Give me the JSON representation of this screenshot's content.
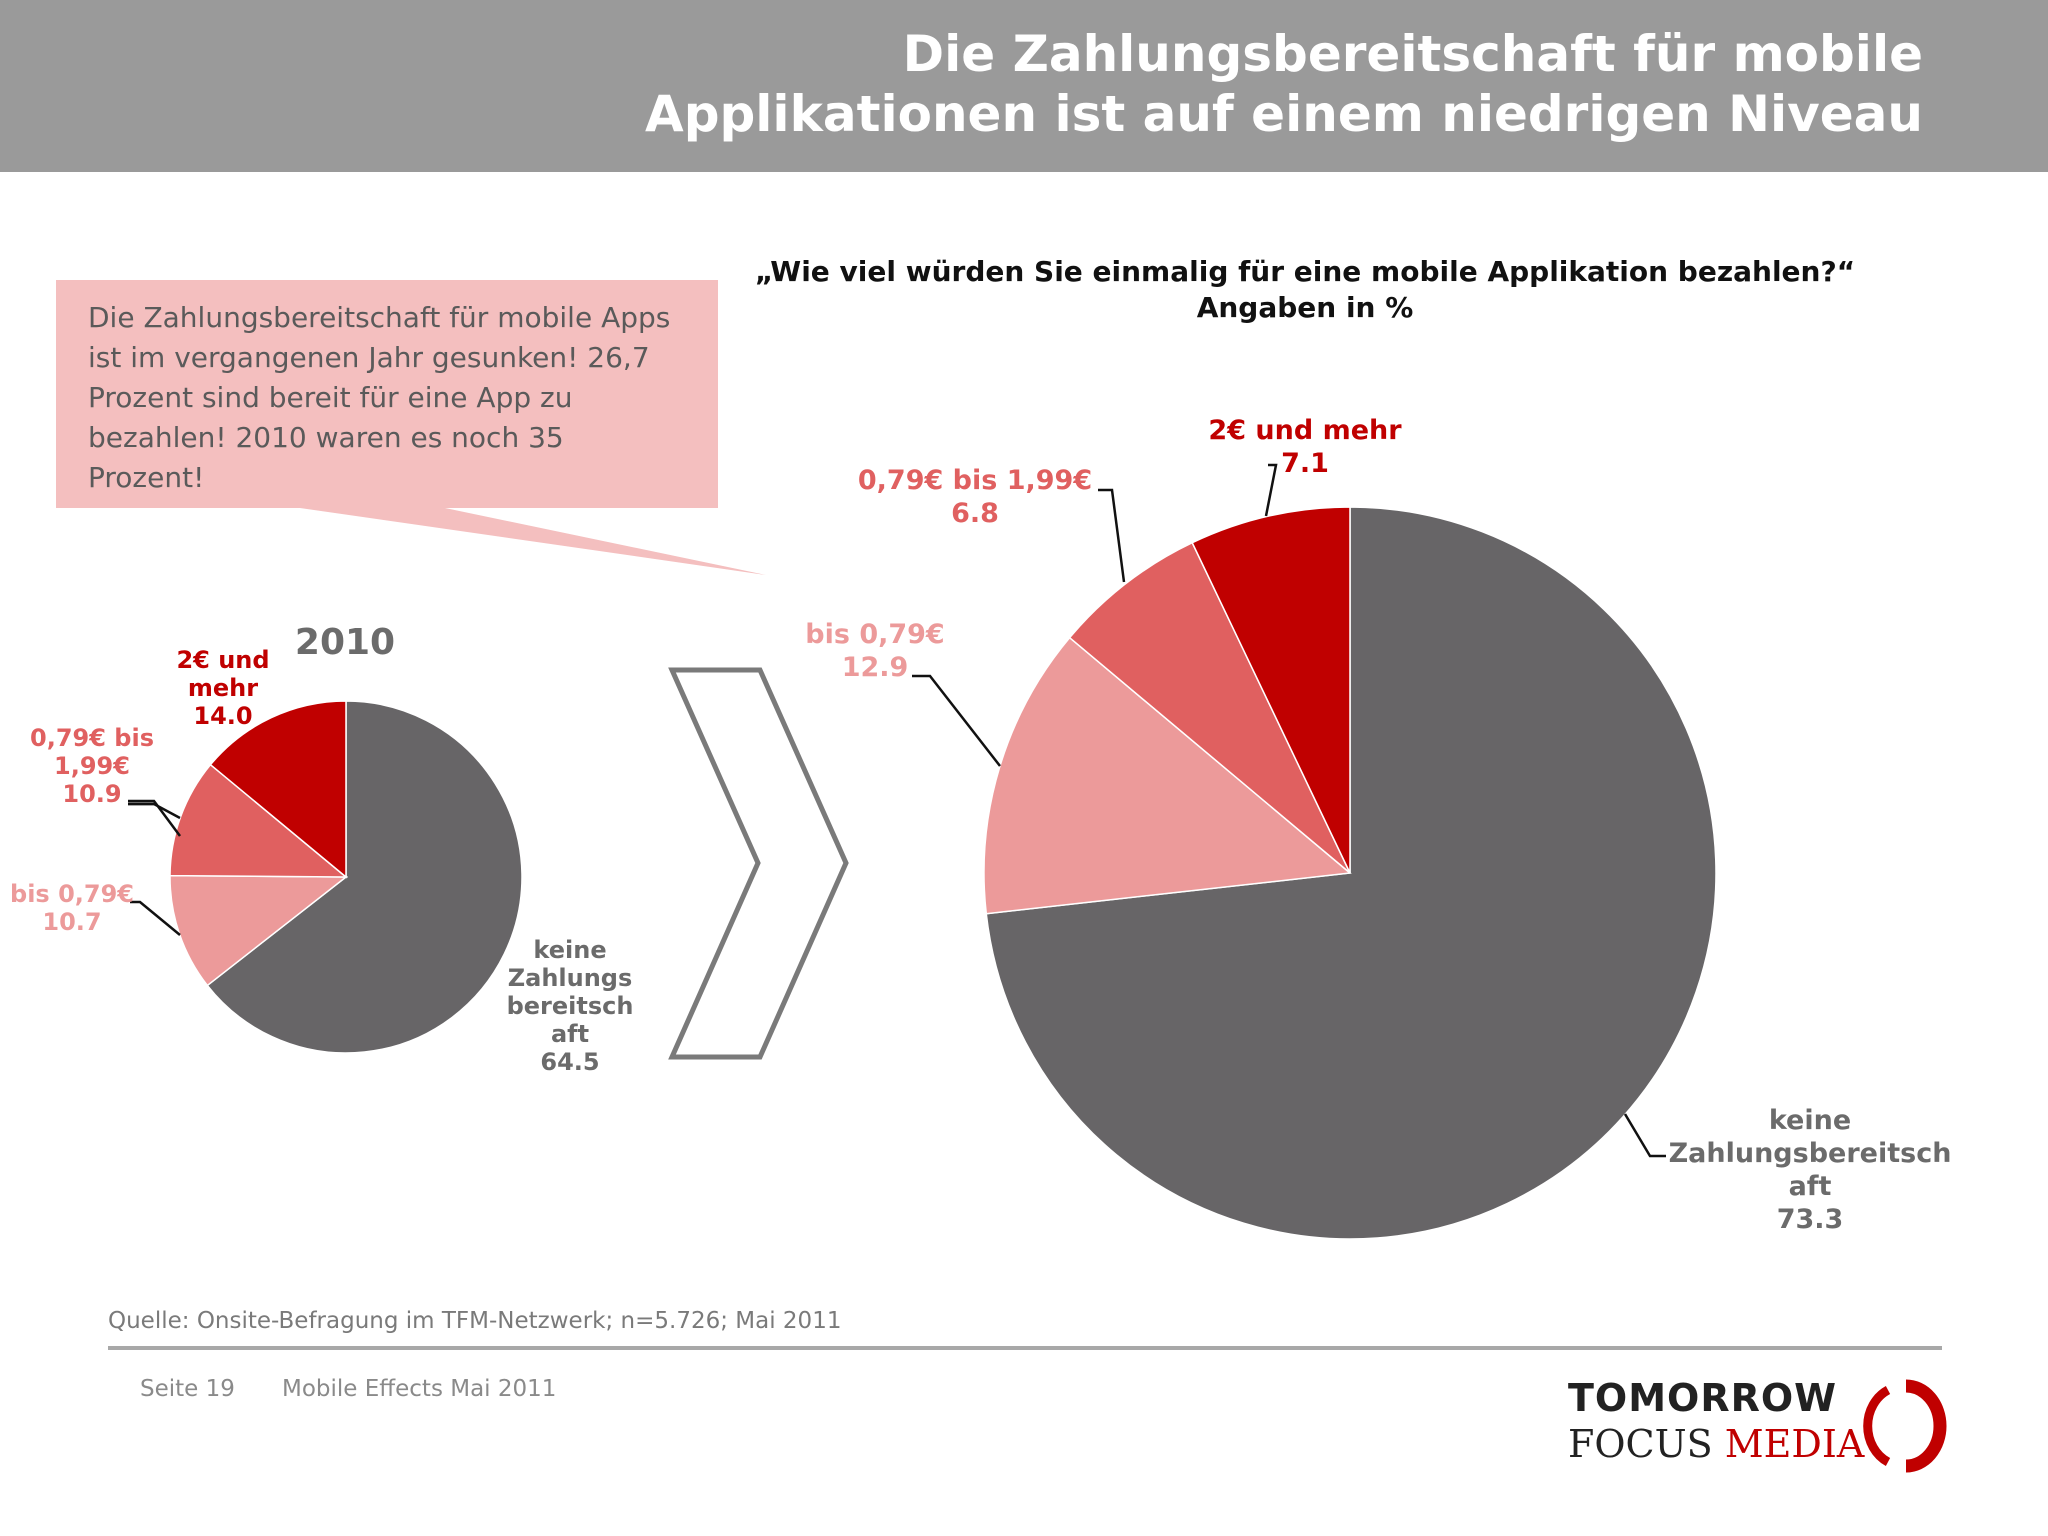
{
  "header": {
    "title_line1": "Die Zahlungsbereitschaft für mobile",
    "title_line2": "Applikationen ist auf einem niedrigen Niveau"
  },
  "callout": {
    "lines": [
      "Die Zahlungsbereitschaft für mobile Apps",
      "ist im vergangenen Jahr gesunken! 26,7",
      "Prozent sind bereit für eine App zu",
      "bezahlen! 2010 waren es noch 35",
      "Prozent!"
    ]
  },
  "colors": {
    "dark_grey": "#676567",
    "dark_red": "#c00000",
    "mid_red": "#e06060",
    "light_red": "#ec9a9a",
    "callout_bg": "#f4bfbf"
  },
  "chart_data": [
    {
      "type": "pie",
      "title": "2010",
      "slices": [
        {
          "label": "keine Zahlungsbereitschaft",
          "value": 64.5
        },
        {
          "label": "bis 0,79€",
          "value": 10.7
        },
        {
          "label": "0,79€ bis 1,99€",
          "value": 10.9
        },
        {
          "label": "2€ und mehr",
          "value": 14.0
        }
      ]
    },
    {
      "type": "pie",
      "title": "„Wie viel würden Sie einmalig für eine mobile Applikation bezahlen?“",
      "subtitle": "Angaben in %",
      "slices": [
        {
          "label": "keine Zahlungsbereitschaft",
          "value": 73.3
        },
        {
          "label": "bis 0,79€",
          "value": 12.9
        },
        {
          "label": "0,79€ bis 1,99€",
          "value": 6.8
        },
        {
          "label": "2€ und mehr",
          "value": 7.1
        }
      ]
    }
  ],
  "labels_2010": {
    "keine": [
      "keine",
      "Zahlungs",
      "bereitsch",
      "aft"
    ],
    "bis079": [
      "bis 0,79€"
    ],
    "mid": [
      "0,79€ bis",
      "1,99€"
    ],
    "top": [
      "2€ und",
      "mehr"
    ]
  },
  "labels_2011": {
    "keine": [
      "keine",
      "Zahlungsbereitsch",
      "aft"
    ],
    "bis079": [
      "bis 0,79€"
    ],
    "mid": [
      "0,79€ bis 1,99€"
    ],
    "top": [
      "2€ und mehr"
    ]
  },
  "footer": {
    "source": "Quelle: Onsite-Befragung im TFM-Netzwerk; n=5.726; Mai 2011",
    "page": "Seite 19",
    "report": "Mobile Effects Mai 2011",
    "logo_line1": "TOMORROW",
    "logo_line2_a": "FOCUS",
    "logo_line2_b": "MEDIA"
  }
}
